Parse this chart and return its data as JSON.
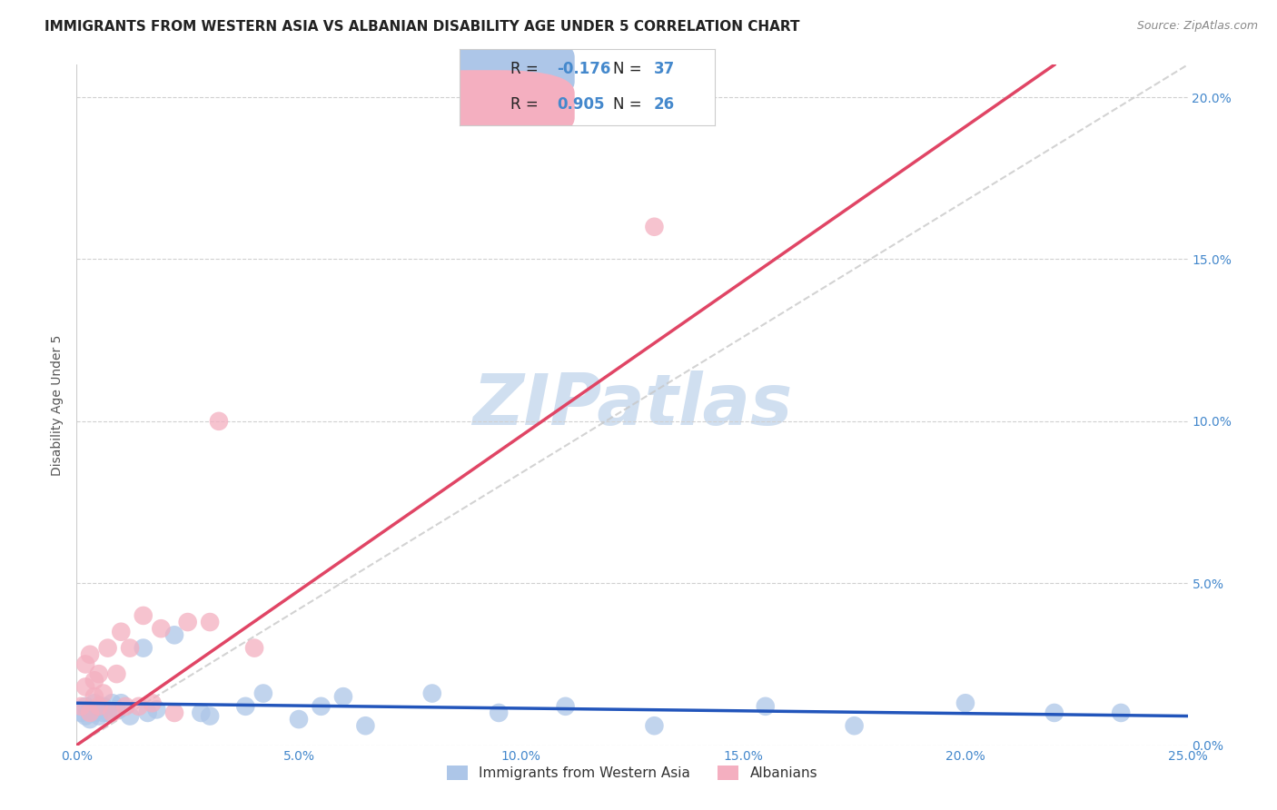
{
  "title": "IMMIGRANTS FROM WESTERN ASIA VS ALBANIAN DISABILITY AGE UNDER 5 CORRELATION CHART",
  "source": "Source: ZipAtlas.com",
  "ylabel": "Disability Age Under 5",
  "xlim": [
    0.0,
    0.25
  ],
  "ylim": [
    0.0,
    0.21
  ],
  "xticks": [
    0.0,
    0.05,
    0.1,
    0.15,
    0.2,
    0.25
  ],
  "yticks_right": [
    0.0,
    0.05,
    0.1,
    0.15,
    0.2
  ],
  "ytick_labels_right": [
    "0.0%",
    "5.0%",
    "10.0%",
    "15.0%",
    "20.0%"
  ],
  "xtick_labels": [
    "0.0%",
    "5.0%",
    "10.0%",
    "15.0%",
    "20.0%",
    "25.0%"
  ],
  "blue_color": "#adc6e8",
  "pink_color": "#f4afc0",
  "blue_line_color": "#2255bb",
  "pink_line_color": "#e04565",
  "diagonal_color": "#c8c8c8",
  "watermark_color": "#d0dff0",
  "legend_R_blue": "-0.176",
  "legend_N_blue": "37",
  "legend_R_pink": "0.905",
  "legend_N_pink": "26",
  "label_blue": "Immigrants from Western Asia",
  "label_pink": "Albanians",
  "title_fontsize": 11,
  "axis_label_fontsize": 10,
  "tick_fontsize": 10,
  "blue_scatter_x": [
    0.001,
    0.002,
    0.002,
    0.003,
    0.003,
    0.004,
    0.004,
    0.005,
    0.005,
    0.006,
    0.006,
    0.007,
    0.008,
    0.009,
    0.01,
    0.012,
    0.015,
    0.016,
    0.018,
    0.022,
    0.028,
    0.03,
    0.038,
    0.042,
    0.05,
    0.055,
    0.06,
    0.065,
    0.08,
    0.095,
    0.11,
    0.13,
    0.155,
    0.175,
    0.2,
    0.22,
    0.235
  ],
  "blue_scatter_y": [
    0.01,
    0.009,
    0.012,
    0.008,
    0.011,
    0.013,
    0.01,
    0.011,
    0.009,
    0.012,
    0.01,
    0.01,
    0.013,
    0.011,
    0.013,
    0.009,
    0.03,
    0.01,
    0.011,
    0.034,
    0.01,
    0.009,
    0.012,
    0.016,
    0.008,
    0.012,
    0.015,
    0.006,
    0.016,
    0.01,
    0.012,
    0.006,
    0.012,
    0.006,
    0.013,
    0.01,
    0.01
  ],
  "pink_scatter_x": [
    0.001,
    0.002,
    0.002,
    0.003,
    0.003,
    0.004,
    0.004,
    0.005,
    0.005,
    0.006,
    0.007,
    0.008,
    0.009,
    0.01,
    0.011,
    0.012,
    0.014,
    0.015,
    0.017,
    0.019,
    0.022,
    0.025,
    0.03,
    0.032,
    0.04,
    0.13
  ],
  "pink_scatter_y": [
    0.012,
    0.018,
    0.025,
    0.01,
    0.028,
    0.02,
    0.015,
    0.022,
    0.012,
    0.016,
    0.03,
    0.01,
    0.022,
    0.035,
    0.012,
    0.03,
    0.012,
    0.04,
    0.013,
    0.036,
    0.01,
    0.038,
    0.038,
    0.1,
    0.03,
    0.16
  ],
  "blue_line_x": [
    0.0,
    0.25
  ],
  "blue_line_y_start": 0.013,
  "blue_line_y_end": 0.009,
  "pink_line_x": [
    0.0,
    0.21
  ],
  "pink_line_y_start": 0.0,
  "pink_line_y_end": 0.21
}
